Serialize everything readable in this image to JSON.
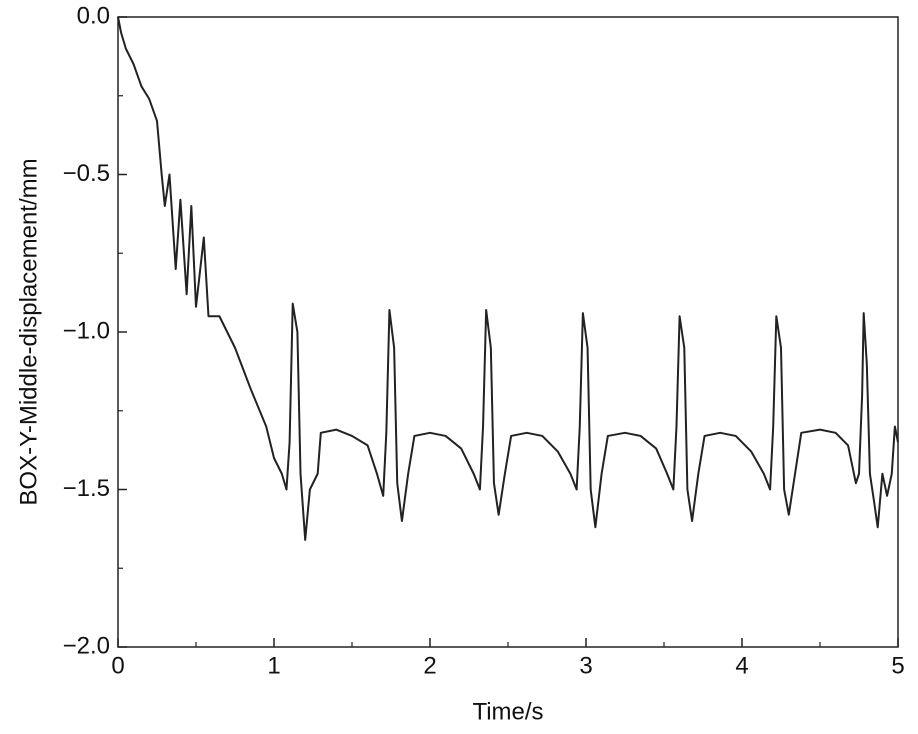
{
  "chart_data": {
    "type": "line",
    "x_label": "Time/s",
    "y_label": "BOX-Y-Middle-displacement/mm",
    "xlim": [
      0,
      5
    ],
    "xticks": [
      0,
      1,
      2,
      3,
      4,
      5
    ],
    "ylim": [
      -2.0,
      0.0
    ],
    "yticks": [
      {
        "value": 0.0,
        "label": "0.0"
      },
      {
        "value": -0.5,
        "label": "−0.5"
      },
      {
        "value": -1.0,
        "label": "−1.0"
      },
      {
        "value": -1.5,
        "label": "−1.5"
      },
      {
        "value": -2.0,
        "label": "−2.0"
      }
    ],
    "color": "#222222",
    "x": [
      0,
      0.02,
      0.05,
      0.1,
      0.15,
      0.2,
      0.25,
      0.28,
      0.3,
      0.33,
      0.37,
      0.4,
      0.44,
      0.47,
      0.5,
      0.55,
      0.58,
      0.65,
      0.75,
      0.85,
      0.95,
      1.0,
      1.05,
      1.08,
      1.1,
      1.12,
      1.15,
      1.17,
      1.2,
      1.23,
      1.28,
      1.3,
      1.4,
      1.5,
      1.6,
      1.66,
      1.7,
      1.72,
      1.74,
      1.77,
      1.79,
      1.82,
      1.86,
      1.9,
      2.0,
      2.1,
      2.2,
      2.28,
      2.32,
      2.34,
      2.36,
      2.39,
      2.41,
      2.44,
      2.48,
      2.52,
      2.62,
      2.72,
      2.82,
      2.9,
      2.94,
      2.96,
      2.98,
      3.01,
      3.03,
      3.06,
      3.1,
      3.14,
      3.25,
      3.35,
      3.45,
      3.52,
      3.56,
      3.58,
      3.6,
      3.63,
      3.65,
      3.68,
      3.72,
      3.76,
      3.86,
      3.96,
      4.06,
      4.14,
      4.18,
      4.2,
      4.22,
      4.25,
      4.27,
      4.3,
      4.34,
      4.38,
      4.5,
      4.6,
      4.68,
      4.73,
      4.75,
      4.77,
      4.78,
      4.8,
      4.82,
      4.85,
      4.87,
      4.9,
      4.93,
      4.96,
      4.98,
      5.0
    ],
    "values": [
      0,
      -0.05,
      -0.1,
      -0.15,
      -0.22,
      -0.26,
      -0.33,
      -0.5,
      -0.6,
      -0.5,
      -0.8,
      -0.58,
      -0.88,
      -0.6,
      -0.92,
      -0.7,
      -0.95,
      -0.95,
      -1.05,
      -1.18,
      -1.3,
      -1.4,
      -1.45,
      -1.5,
      -1.35,
      -0.91,
      -1.0,
      -1.45,
      -1.66,
      -1.5,
      -1.45,
      -1.32,
      -1.31,
      -1.33,
      -1.36,
      -1.45,
      -1.52,
      -1.32,
      -0.93,
      -1.05,
      -1.48,
      -1.6,
      -1.45,
      -1.33,
      -1.32,
      -1.33,
      -1.37,
      -1.45,
      -1.5,
      -1.3,
      -0.93,
      -1.05,
      -1.48,
      -1.58,
      -1.45,
      -1.33,
      -1.32,
      -1.33,
      -1.38,
      -1.45,
      -1.5,
      -1.3,
      -0.94,
      -1.05,
      -1.5,
      -1.62,
      -1.45,
      -1.33,
      -1.32,
      -1.33,
      -1.37,
      -1.45,
      -1.5,
      -1.3,
      -0.95,
      -1.05,
      -1.5,
      -1.6,
      -1.45,
      -1.33,
      -1.32,
      -1.33,
      -1.38,
      -1.45,
      -1.5,
      -1.3,
      -0.95,
      -1.05,
      -1.5,
      -1.58,
      -1.45,
      -1.32,
      -1.31,
      -1.32,
      -1.36,
      -1.48,
      -1.45,
      -1.2,
      -0.94,
      -1.1,
      -1.45,
      -1.55,
      -1.62,
      -1.45,
      -1.52,
      -1.45,
      -1.3,
      -1.35
    ]
  }
}
